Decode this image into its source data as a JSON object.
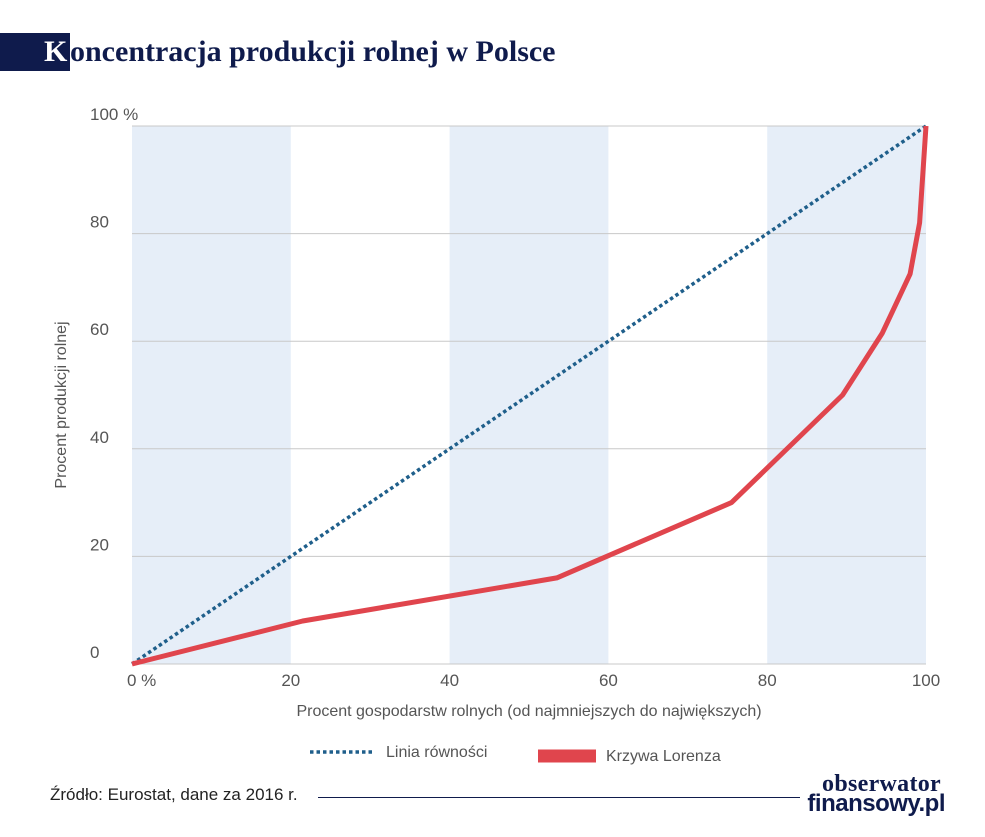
{
  "title": {
    "initial": "K",
    "rest": "oncentracja produkcji rolnej w Polsce"
  },
  "source": "Źródło: Eurostat, dane za 2016 r.",
  "logo": {
    "line1": "obserwator",
    "line2": "finansowy.pl"
  },
  "colors": {
    "brand": "#0f1b4c",
    "equality_line": "#1f5f8b",
    "lorenz_curve": "#e0454d",
    "band": "#e6eef8",
    "grid": "#c8c8c8"
  },
  "chart_data": {
    "type": "line",
    "xlabel": "Procent gospodarstw rolnych (od najmniejszych do największych)",
    "ylabel": "Procent produkcji rolnej",
    "xlim": [
      0,
      100
    ],
    "ylim": [
      0,
      100
    ],
    "x_ticks": [
      {
        "value": 0,
        "label": "0 %"
      },
      {
        "value": 20,
        "label": "20"
      },
      {
        "value": 40,
        "label": "40"
      },
      {
        "value": 60,
        "label": "60"
      },
      {
        "value": 80,
        "label": "80"
      },
      {
        "value": 100,
        "label": "100"
      }
    ],
    "y_ticks": [
      {
        "value": 0,
        "label": "0"
      },
      {
        "value": 20,
        "label": "20"
      },
      {
        "value": 40,
        "label": "40"
      },
      {
        "value": 60,
        "label": "60"
      },
      {
        "value": 80,
        "label": "80"
      },
      {
        "value": 100,
        "label": "100 %"
      }
    ],
    "bands": [
      [
        0,
        20
      ],
      [
        40,
        60
      ],
      [
        80,
        100
      ]
    ],
    "grid": "horizontal",
    "legend_position": "bottom",
    "series": [
      {
        "name": "Linia równości",
        "style": "dotted",
        "x": [
          0,
          100
        ],
        "y": [
          0,
          100
        ]
      },
      {
        "name": "Krzywa Lorenza",
        "style": "solid",
        "x": [
          0,
          21.5,
          53.5,
          75.5,
          89.5,
          94.5,
          98,
          99.2,
          100
        ],
        "y": [
          0,
          8,
          16,
          30,
          50,
          61.5,
          72.5,
          82,
          100
        ]
      }
    ]
  }
}
